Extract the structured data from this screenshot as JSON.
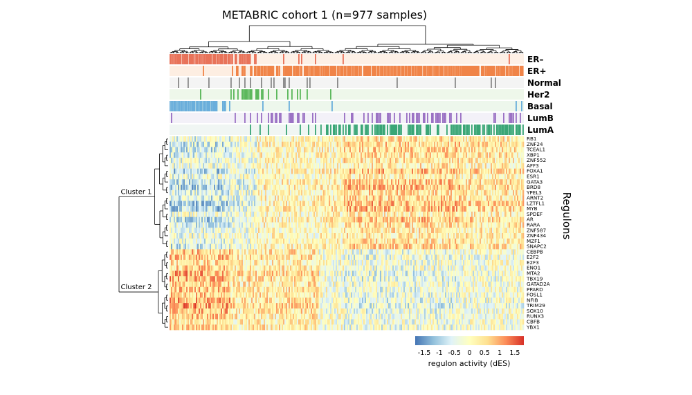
{
  "chart_data": {
    "type": "heatmap",
    "title": "METABRIC cohort 1 (n=977 samples)",
    "ylabel": "Regulons",
    "colorbar": {
      "title": "regulon activity (dES)",
      "range": [
        -1.8,
        1.8
      ],
      "ticks": [
        "-1.5",
        "-1",
        "-0.5",
        "0",
        "0.5",
        "1",
        "1.5"
      ],
      "colors": [
        "#4575b4",
        "#91bfdb",
        "#e0f3f8",
        "#ffffbf",
        "#fee090",
        "#fc8d59",
        "#d73027"
      ]
    },
    "annotation_tracks": [
      {
        "label": "ER–",
        "color": "#e8735a",
        "bg": "#fdf0e6"
      },
      {
        "label": "ER+",
        "color": "#f08448",
        "bg": "#fdeee2"
      },
      {
        "label": "Normal",
        "color": "#8a8a8a",
        "bg": "#f4f4f4"
      },
      {
        "label": "Her2",
        "color": "#5cb85c",
        "bg": "#eef7ea"
      },
      {
        "label": "Basal",
        "color": "#6aaedb",
        "bg": "#edf7ec"
      },
      {
        "label": "LumB",
        "color": "#9b72c4",
        "bg": "#f3f1f8"
      },
      {
        "label": "LumA",
        "color": "#3aa676",
        "bg": "#f0f6f3"
      }
    ],
    "clusters": [
      {
        "label": "Cluster 1",
        "rows": 20
      },
      {
        "label": "Cluster 2",
        "rows": 16
      }
    ],
    "rows": [
      "RB1",
      "ZNF24",
      "TCEAL1",
      "XBP1",
      "ZNF552",
      "AFF3",
      "FOXA1",
      "ESR1",
      "GATA3",
      "BRD8",
      "YPEL3",
      "ARNT2",
      "LZTFL1",
      "MYB",
      "SPDEF",
      "AR",
      "RARA",
      "ZNF587",
      "ZNF434",
      "MZF1",
      "SNAPC2",
      "CEBPB",
      "E2F2",
      "E2F3",
      "ENO1",
      "MTA2",
      "TBX19",
      "GATAD2A",
      "PPARD",
      "FOSL1",
      "NFIB",
      "TRIM29",
      "SOX10",
      "RUNX3",
      "CBFB",
      "YBX1"
    ]
  }
}
